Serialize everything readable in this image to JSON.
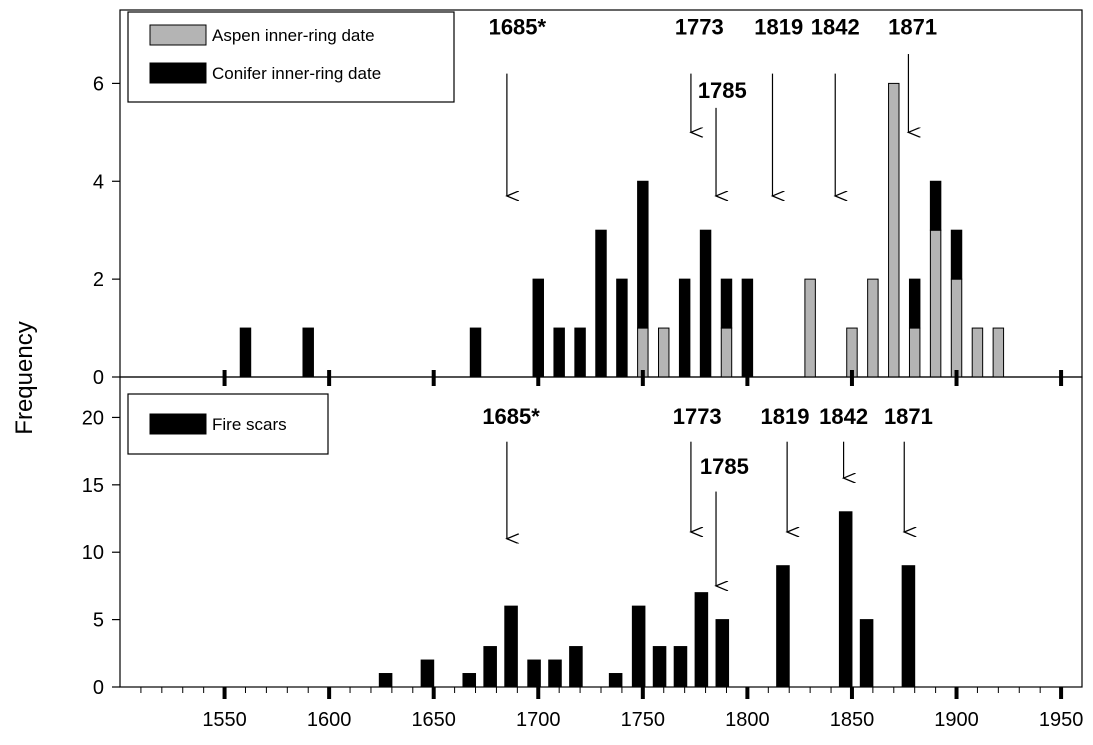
{
  "chart_data": {
    "ylabel": "Frequency",
    "xlim": [
      1500,
      1960
    ],
    "x_ticks": [
      1550,
      1600,
      1650,
      1700,
      1750,
      1800,
      1850,
      1900,
      1950
    ],
    "x_tick_labels": [
      "1550",
      "1600",
      "1650",
      "1700",
      "1750",
      "1800",
      "1850",
      "1900",
      "1950"
    ],
    "panels": [
      {
        "id": "top",
        "type": "bar",
        "stacked": true,
        "ylim": [
          0,
          7.5
        ],
        "y_ticks": [
          0,
          2,
          4,
          6
        ],
        "y_tick_labels": [
          "0",
          "2",
          "4",
          "6"
        ],
        "bar_width_years": 5,
        "legend": {
          "position": "top-left"
        },
        "series": [
          {
            "name": "Aspen inner-ring date",
            "color": "#b4b4b4",
            "points": [
              {
                "x": 1750,
                "y": 1
              },
              {
                "x": 1760,
                "y": 1
              },
              {
                "x": 1790,
                "y": 1
              },
              {
                "x": 1830,
                "y": 2
              },
              {
                "x": 1850,
                "y": 1
              },
              {
                "x": 1860,
                "y": 2
              },
              {
                "x": 1870,
                "y": 6
              },
              {
                "x": 1880,
                "y": 1
              },
              {
                "x": 1890,
                "y": 3
              },
              {
                "x": 1900,
                "y": 2
              },
              {
                "x": 1910,
                "y": 1
              },
              {
                "x": 1920,
                "y": 1
              }
            ]
          },
          {
            "name": "Conifer inner-ring date",
            "color": "#000000",
            "points": [
              {
                "x": 1560,
                "y": 1
              },
              {
                "x": 1590,
                "y": 1
              },
              {
                "x": 1670,
                "y": 1
              },
              {
                "x": 1700,
                "y": 2
              },
              {
                "x": 1710,
                "y": 1
              },
              {
                "x": 1720,
                "y": 1
              },
              {
                "x": 1730,
                "y": 3
              },
              {
                "x": 1740,
                "y": 2
              },
              {
                "x": 1750,
                "y": 3
              },
              {
                "x": 1770,
                "y": 2
              },
              {
                "x": 1780,
                "y": 3
              },
              {
                "x": 1790,
                "y": 1
              },
              {
                "x": 1800,
                "y": 2
              },
              {
                "x": 1880,
                "y": 1
              },
              {
                "x": 1890,
                "y": 1
              },
              {
                "x": 1900,
                "y": 1
              }
            ]
          }
        ],
        "annotations": [
          {
            "label": "1685*",
            "x": 1685,
            "label_x": 1690,
            "label_y": 7.0,
            "arrow_start": 6.2,
            "arrow_end": 3.7
          },
          {
            "label": "1773",
            "x": 1773,
            "label_x": 1777,
            "label_y": 7.0,
            "arrow_start": 6.2,
            "arrow_end": 5.0
          },
          {
            "label": "1785",
            "x": 1785,
            "label_x": 1788,
            "label_y": 5.7,
            "arrow_start": 5.5,
            "arrow_end": 3.7
          },
          {
            "label": "1819",
            "x": 1812,
            "label_x": 1815,
            "label_y": 7.0,
            "arrow_start": 6.2,
            "arrow_end": 3.7
          },
          {
            "label": "1842",
            "x": 1842,
            "label_x": 1842,
            "label_y": 7.0,
            "arrow_start": 6.2,
            "arrow_end": 3.7
          },
          {
            "label": "1871",
            "x": 1877,
            "label_x": 1879,
            "label_y": 7.0,
            "arrow_start": 6.6,
            "arrow_end": 5.0
          }
        ]
      },
      {
        "id": "bottom",
        "type": "bar",
        "ylim": [
          0,
          23
        ],
        "y_ticks": [
          0,
          5,
          10,
          15,
          20
        ],
        "y_tick_labels": [
          "0",
          "5",
          "10",
          "15",
          "20"
        ],
        "bar_width_years": 6,
        "legend": {
          "position": "top-left"
        },
        "series": [
          {
            "name": "Fire scars",
            "color": "#000000",
            "points": [
              {
                "x": 1627,
                "y": 1
              },
              {
                "x": 1647,
                "y": 2
              },
              {
                "x": 1667,
                "y": 1
              },
              {
                "x": 1677,
                "y": 3
              },
              {
                "x": 1687,
                "y": 6
              },
              {
                "x": 1698,
                "y": 2
              },
              {
                "x": 1708,
                "y": 2
              },
              {
                "x": 1718,
                "y": 3
              },
              {
                "x": 1737,
                "y": 1
              },
              {
                "x": 1748,
                "y": 6
              },
              {
                "x": 1758,
                "y": 3
              },
              {
                "x": 1768,
                "y": 3
              },
              {
                "x": 1778,
                "y": 7
              },
              {
                "x": 1788,
                "y": 5
              },
              {
                "x": 1817,
                "y": 9
              },
              {
                "x": 1847,
                "y": 13
              },
              {
                "x": 1857,
                "y": 5
              },
              {
                "x": 1877,
                "y": 9
              }
            ]
          }
        ],
        "annotations": [
          {
            "label": "1685*",
            "x": 1685,
            "label_x": 1687,
            "label_y": 19.5,
            "arrow_start": 18.2,
            "arrow_end": 11
          },
          {
            "label": "1773",
            "x": 1773,
            "label_x": 1776,
            "label_y": 19.5,
            "arrow_start": 18.2,
            "arrow_end": 11.5
          },
          {
            "label": "1785",
            "x": 1785,
            "label_x": 1789,
            "label_y": 15.8,
            "arrow_start": 14.5,
            "arrow_end": 7.5
          },
          {
            "label": "1819",
            "x": 1819,
            "label_x": 1818,
            "label_y": 19.5,
            "arrow_start": 18.2,
            "arrow_end": 11.5
          },
          {
            "label": "1842",
            "x": 1846,
            "label_x": 1846,
            "label_y": 19.5,
            "arrow_start": 18.2,
            "arrow_end": 15.5
          },
          {
            "label": "1871",
            "x": 1875,
            "label_x": 1877,
            "label_y": 19.5,
            "arrow_start": 18.2,
            "arrow_end": 11.5
          }
        ]
      }
    ]
  }
}
